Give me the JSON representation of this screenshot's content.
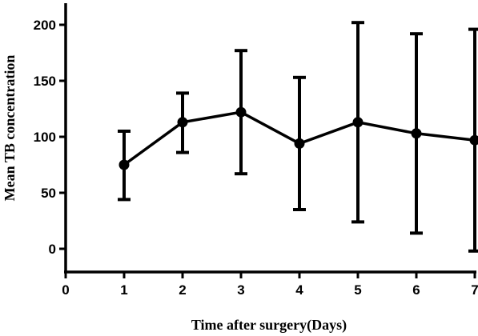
{
  "chart_data": {
    "type": "line",
    "title": "",
    "xlabel": "Time after surgery(Days)",
    "ylabel": "Mean TB concentration",
    "x": [
      1,
      2,
      3,
      4,
      5,
      6,
      7
    ],
    "xlim": [
      0,
      7
    ],
    "ylim": [
      -20,
      220
    ],
    "xticks": [
      0,
      1,
      2,
      3,
      4,
      5,
      6,
      7
    ],
    "yticks": [
      0,
      50,
      100,
      150,
      200
    ],
    "grid": false,
    "series": [
      {
        "values": [
          75,
          113,
          122,
          94,
          113,
          103,
          97
        ],
        "error_low": [
          44,
          86,
          67,
          35,
          24,
          14,
          -2
        ],
        "error_high": [
          105,
          139,
          177,
          153,
          202,
          192,
          196
        ],
        "color": "#000000",
        "marker": "circle"
      }
    ]
  }
}
